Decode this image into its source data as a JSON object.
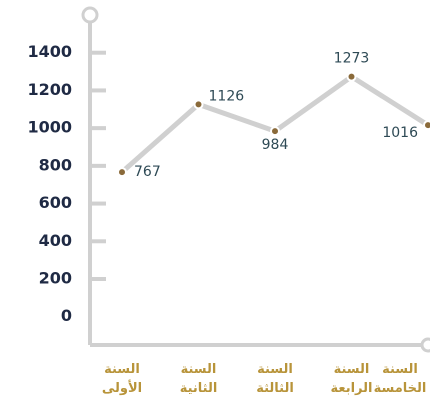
{
  "chart_data": {
    "type": "line",
    "categories": [
      "السنة الأولى",
      "السنة الثانية",
      "السنة الثالثة",
      "السنة الرابعة",
      "السنة الخامسة"
    ],
    "series": [
      {
        "name": "",
        "color": "#d0d0d0",
        "values": [
          767,
          1126,
          984,
          1273,
          1016
        ]
      }
    ],
    "ylim": [
      -150,
      1600
    ],
    "yticks": [
      0,
      200,
      400,
      600,
      800,
      1000,
      1200,
      1400
    ]
  }
}
